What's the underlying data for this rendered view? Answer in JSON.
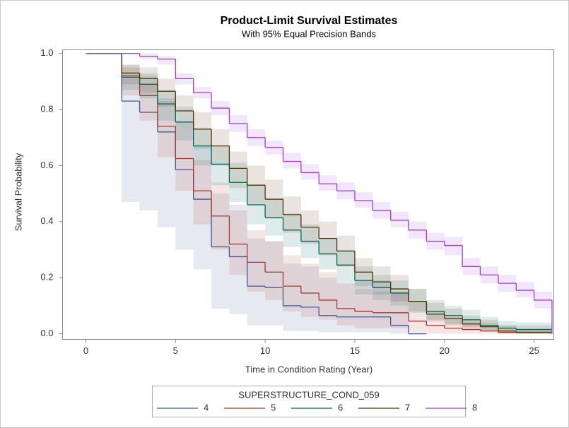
{
  "chart_data": {
    "type": "step",
    "title": "Product-Limit Survival Estimates",
    "subtitle": "With 95% Equal Precision Bands",
    "x_label": "Time in Condition Rating (Year)",
    "y_label": "Survival Probability",
    "legend_title": "SUPERSTRUCTURE_COND_059",
    "legend_position": "bottom",
    "xlim": [
      -1.3,
      26.1
    ],
    "ylim": [
      -0.02,
      1.013
    ],
    "xticks": [
      0,
      5,
      10,
      15,
      20,
      25
    ],
    "yticks": [
      {
        "value": 0,
        "label": "0.0"
      },
      0.2,
      0.4,
      0.6,
      0.8,
      {
        "value": 1,
        "label": "1.0"
      }
    ],
    "x": [
      0,
      1,
      2,
      3,
      4,
      5,
      6,
      7,
      8,
      9,
      10,
      11,
      12,
      13,
      14,
      15,
      16,
      17,
      18,
      19,
      20,
      21,
      22,
      23,
      24,
      25,
      26
    ],
    "series": [
      {
        "name": "4",
        "color": "#445694",
        "values": [
          1,
          1,
          0.83,
          0.79,
          0.72,
          0.585,
          0.48,
          0.31,
          0.275,
          0.17,
          0.165,
          0.1,
          0.095,
          0.065,
          0.06,
          0.06,
          0.06,
          0.03,
          0,
          null,
          null,
          null,
          null,
          null,
          null,
          null,
          null
        ],
        "lower": [
          null,
          null,
          0.47,
          0.44,
          0.38,
          0.3,
          0.23,
          0.09,
          0.07,
          0.03,
          0.03,
          0.01,
          0.01,
          0.005,
          0.005,
          0.005,
          0.005,
          0,
          null,
          null,
          null,
          null,
          null,
          null,
          null,
          null,
          null
        ],
        "upper": [
          null,
          null,
          0.91,
          0.89,
          0.84,
          0.76,
          0.67,
          0.5,
          0.46,
          0.34,
          0.33,
          0.25,
          0.24,
          0.2,
          0.19,
          0.19,
          0.19,
          0.15,
          null,
          null,
          null,
          null,
          null,
          null,
          null,
          null,
          null
        ]
      },
      {
        "name": "5",
        "color": "#A23A2E",
        "values": [
          1,
          1,
          0.92,
          0.85,
          0.74,
          0.625,
          0.51,
          0.42,
          0.32,
          0.255,
          0.22,
          0.17,
          0.145,
          0.12,
          0.09,
          0.08,
          0.075,
          0.075,
          0.045,
          0.03,
          0.02,
          0.015,
          0.01,
          0.005,
          0.005,
          0.005,
          0
        ],
        "lower": [
          null,
          null,
          0.85,
          0.76,
          0.63,
          0.51,
          0.39,
          0.3,
          0.21,
          0.15,
          0.12,
          0.08,
          0.06,
          0.05,
          0.03,
          0.02,
          0.02,
          0.02,
          0.005,
          0,
          0,
          0,
          0,
          0,
          0,
          0,
          null
        ],
        "upper": [
          null,
          null,
          0.96,
          0.92,
          0.83,
          0.73,
          0.62,
          0.54,
          0.44,
          0.37,
          0.33,
          0.28,
          0.25,
          0.22,
          0.18,
          0.16,
          0.15,
          0.15,
          0.11,
          0.08,
          0.06,
          0.05,
          0.04,
          0.03,
          0.03,
          0.03,
          null
        ]
      },
      {
        "name": "6",
        "color": "#01665E",
        "values": [
          1,
          1,
          0.915,
          0.89,
          0.82,
          0.755,
          0.67,
          0.605,
          0.54,
          0.46,
          0.415,
          0.37,
          0.33,
          0.285,
          0.245,
          0.19,
          0.165,
          0.145,
          0.115,
          0.08,
          0.065,
          0.05,
          0.03,
          0.02,
          0.015,
          0.015,
          0.015
        ],
        "lower": [
          null,
          null,
          0.87,
          0.84,
          0.76,
          0.69,
          0.6,
          0.53,
          0.47,
          0.39,
          0.35,
          0.31,
          0.27,
          0.23,
          0.19,
          0.14,
          0.12,
          0.1,
          0.075,
          0.05,
          0.035,
          0.025,
          0.01,
          0.005,
          0,
          0,
          null
        ],
        "upper": [
          null,
          null,
          0.95,
          0.93,
          0.87,
          0.81,
          0.73,
          0.67,
          0.61,
          0.53,
          0.48,
          0.43,
          0.39,
          0.34,
          0.3,
          0.24,
          0.21,
          0.19,
          0.16,
          0.12,
          0.1,
          0.085,
          0.06,
          0.045,
          0.04,
          0.04,
          null
        ]
      },
      {
        "name": "7",
        "color": "#543005",
        "values": [
          1,
          1,
          0.93,
          0.91,
          0.865,
          0.795,
          0.73,
          0.67,
          0.59,
          0.53,
          0.48,
          0.425,
          0.38,
          0.34,
          0.295,
          0.22,
          0.185,
          0.16,
          0.115,
          0.07,
          0.055,
          0.035,
          0.025,
          0.01,
          0.005,
          0.005,
          0.005
        ],
        "lower": [
          null,
          null,
          0.89,
          0.86,
          0.81,
          0.73,
          0.66,
          0.6,
          0.52,
          0.46,
          0.41,
          0.36,
          0.32,
          0.28,
          0.24,
          0.17,
          0.14,
          0.115,
          0.08,
          0.045,
          0.03,
          0.015,
          0.01,
          0,
          0,
          0,
          null
        ],
        "upper": [
          null,
          null,
          0.96,
          0.95,
          0.91,
          0.85,
          0.79,
          0.73,
          0.65,
          0.6,
          0.55,
          0.49,
          0.44,
          0.4,
          0.35,
          0.27,
          0.24,
          0.21,
          0.16,
          0.11,
          0.09,
          0.065,
          0.05,
          0.03,
          0.02,
          0.02,
          null
        ]
      },
      {
        "name": "8",
        "color": "#9D3CDB",
        "values": [
          1,
          1,
          1,
          0.99,
          0.98,
          0.91,
          0.86,
          0.805,
          0.75,
          0.7,
          0.665,
          0.615,
          0.575,
          0.535,
          0.51,
          0.475,
          0.44,
          0.405,
          0.37,
          0.33,
          0.315,
          0.24,
          0.21,
          0.18,
          0.155,
          0.12,
          0
        ],
        "lower": [
          null,
          null,
          1,
          0.98,
          0.96,
          0.89,
          0.84,
          0.78,
          0.72,
          0.67,
          0.64,
          0.59,
          0.55,
          0.51,
          0.48,
          0.45,
          0.41,
          0.38,
          0.34,
          0.3,
          0.28,
          0.21,
          0.18,
          0.15,
          0.13,
          0.09,
          null
        ],
        "upper": [
          null,
          null,
          1,
          1,
          0.99,
          0.93,
          0.88,
          0.83,
          0.78,
          0.73,
          0.69,
          0.645,
          0.605,
          0.565,
          0.54,
          0.505,
          0.47,
          0.435,
          0.4,
          0.36,
          0.345,
          0.27,
          0.24,
          0.21,
          0.185,
          0.15,
          null
        ]
      }
    ]
  }
}
